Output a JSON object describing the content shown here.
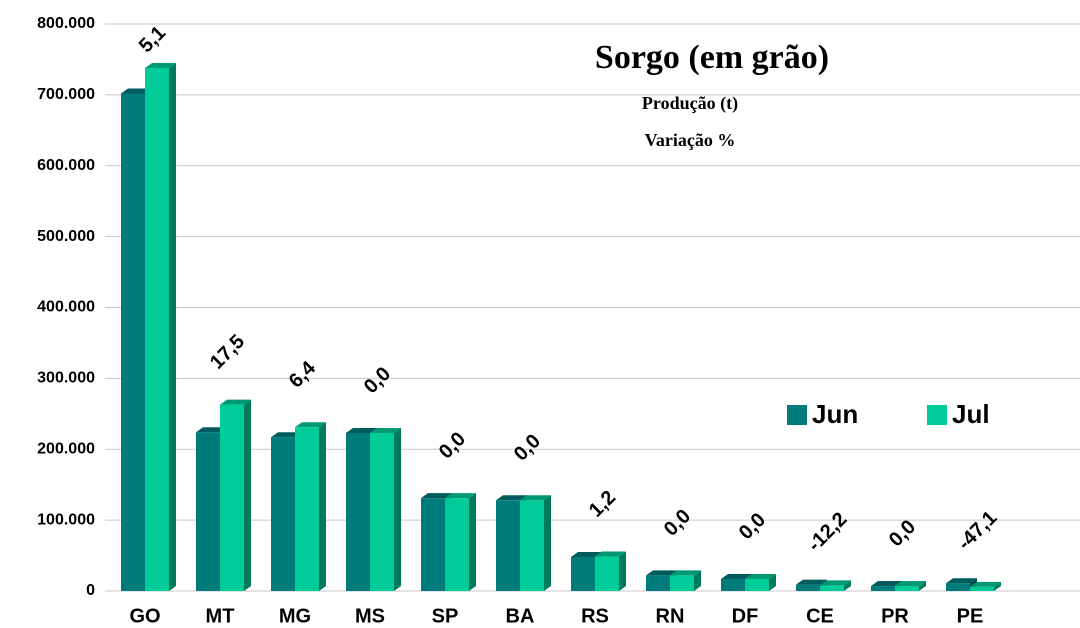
{
  "chart_data": {
    "type": "bar",
    "title": "Sorgo (em grão)",
    "subtitles": [
      "Produção (t)",
      "Variação %"
    ],
    "categories": [
      "GO",
      "MT",
      "MG",
      "MS",
      "SP",
      "BA",
      "RS",
      "RN",
      "DF",
      "CE",
      "PR",
      "PE"
    ],
    "series": [
      {
        "name": "Jun",
        "color": "#007b7b",
        "values": [
          702000,
          224000,
          217000,
          223000,
          131000,
          128000,
          48000,
          22000,
          17000,
          9000,
          7000,
          11000
        ]
      },
      {
        "name": "Jul",
        "color": "#00cc99",
        "values": [
          738000,
          263000,
          231000,
          223000,
          131000,
          128000,
          48600,
          22000,
          17000,
          7900,
          7000,
          5800
        ]
      }
    ],
    "variation": {
      "values": [
        5.1,
        17.5,
        6.4,
        0.0,
        0.0,
        0.0,
        1.2,
        0.0,
        0.0,
        -12.2,
        0.0,
        -47.1
      ],
      "value_labels": [
        "5,1",
        "17,5",
        "6,4",
        "0,0",
        "0,0",
        "0,0",
        "1,2",
        "0,0",
        "0,0",
        "-12,2",
        "0,0",
        "-47,1"
      ]
    },
    "ylim": [
      0,
      800000
    ],
    "yticks": [
      {
        "value": 0,
        "label": "0"
      },
      {
        "value": 100000,
        "label": "100.000"
      },
      {
        "value": 200000,
        "label": "200.000"
      },
      {
        "value": 300000,
        "label": "300.000"
      },
      {
        "value": 400000,
        "label": "400.000"
      },
      {
        "value": 500000,
        "label": "500.000"
      },
      {
        "value": 600000,
        "label": "600.000"
      },
      {
        "value": 700000,
        "label": "700.000"
      },
      {
        "value": 800000,
        "label": "800.000"
      }
    ],
    "grid": true,
    "legend": "right"
  }
}
